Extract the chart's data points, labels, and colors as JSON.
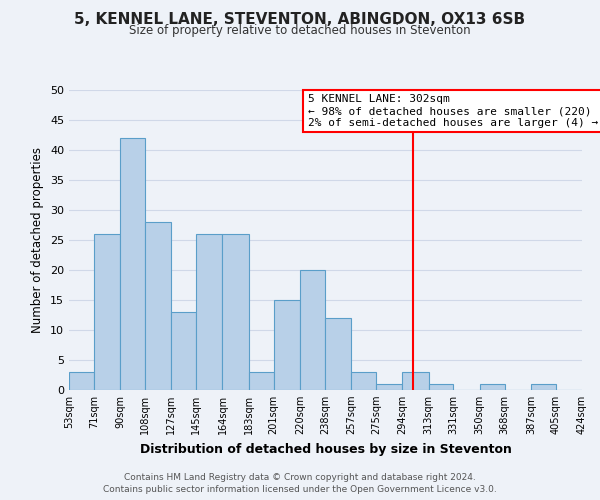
{
  "title": "5, KENNEL LANE, STEVENTON, ABINGDON, OX13 6SB",
  "subtitle": "Size of property relative to detached houses in Steventon",
  "xlabel": "Distribution of detached houses by size in Steventon",
  "ylabel": "Number of detached properties",
  "bin_edges": [
    53,
    71,
    90,
    108,
    127,
    145,
    164,
    183,
    201,
    220,
    238,
    257,
    275,
    294,
    313,
    331,
    350,
    368,
    387,
    405,
    424
  ],
  "bin_labels": [
    "53sqm",
    "71sqm",
    "90sqm",
    "108sqm",
    "127sqm",
    "145sqm",
    "164sqm",
    "183sqm",
    "201sqm",
    "220sqm",
    "238sqm",
    "257sqm",
    "275sqm",
    "294sqm",
    "313sqm",
    "331sqm",
    "350sqm",
    "368sqm",
    "387sqm",
    "405sqm",
    "424sqm"
  ],
  "counts": [
    3,
    26,
    42,
    28,
    13,
    26,
    26,
    3,
    15,
    20,
    12,
    3,
    1,
    3,
    1,
    0,
    1,
    0,
    1,
    0
  ],
  "bar_color": "#b8d0e8",
  "bar_edge_color": "#5a9ec9",
  "grid_color": "#d0d8e8",
  "ylim": [
    0,
    50
  ],
  "yticks": [
    0,
    5,
    10,
    15,
    20,
    25,
    30,
    35,
    40,
    45,
    50
  ],
  "property_line_x": 302,
  "property_line_color": "red",
  "annotation_line1": "5 KENNEL LANE: 302sqm",
  "annotation_line2": "← 98% of detached houses are smaller (220)",
  "annotation_line3": "2% of semi-detached houses are larger (4) →",
  "annotation_box_edge_color": "red",
  "footer_line1": "Contains HM Land Registry data © Crown copyright and database right 2024.",
  "footer_line2": "Contains public sector information licensed under the Open Government Licence v3.0.",
  "background_color": "#eef2f8"
}
